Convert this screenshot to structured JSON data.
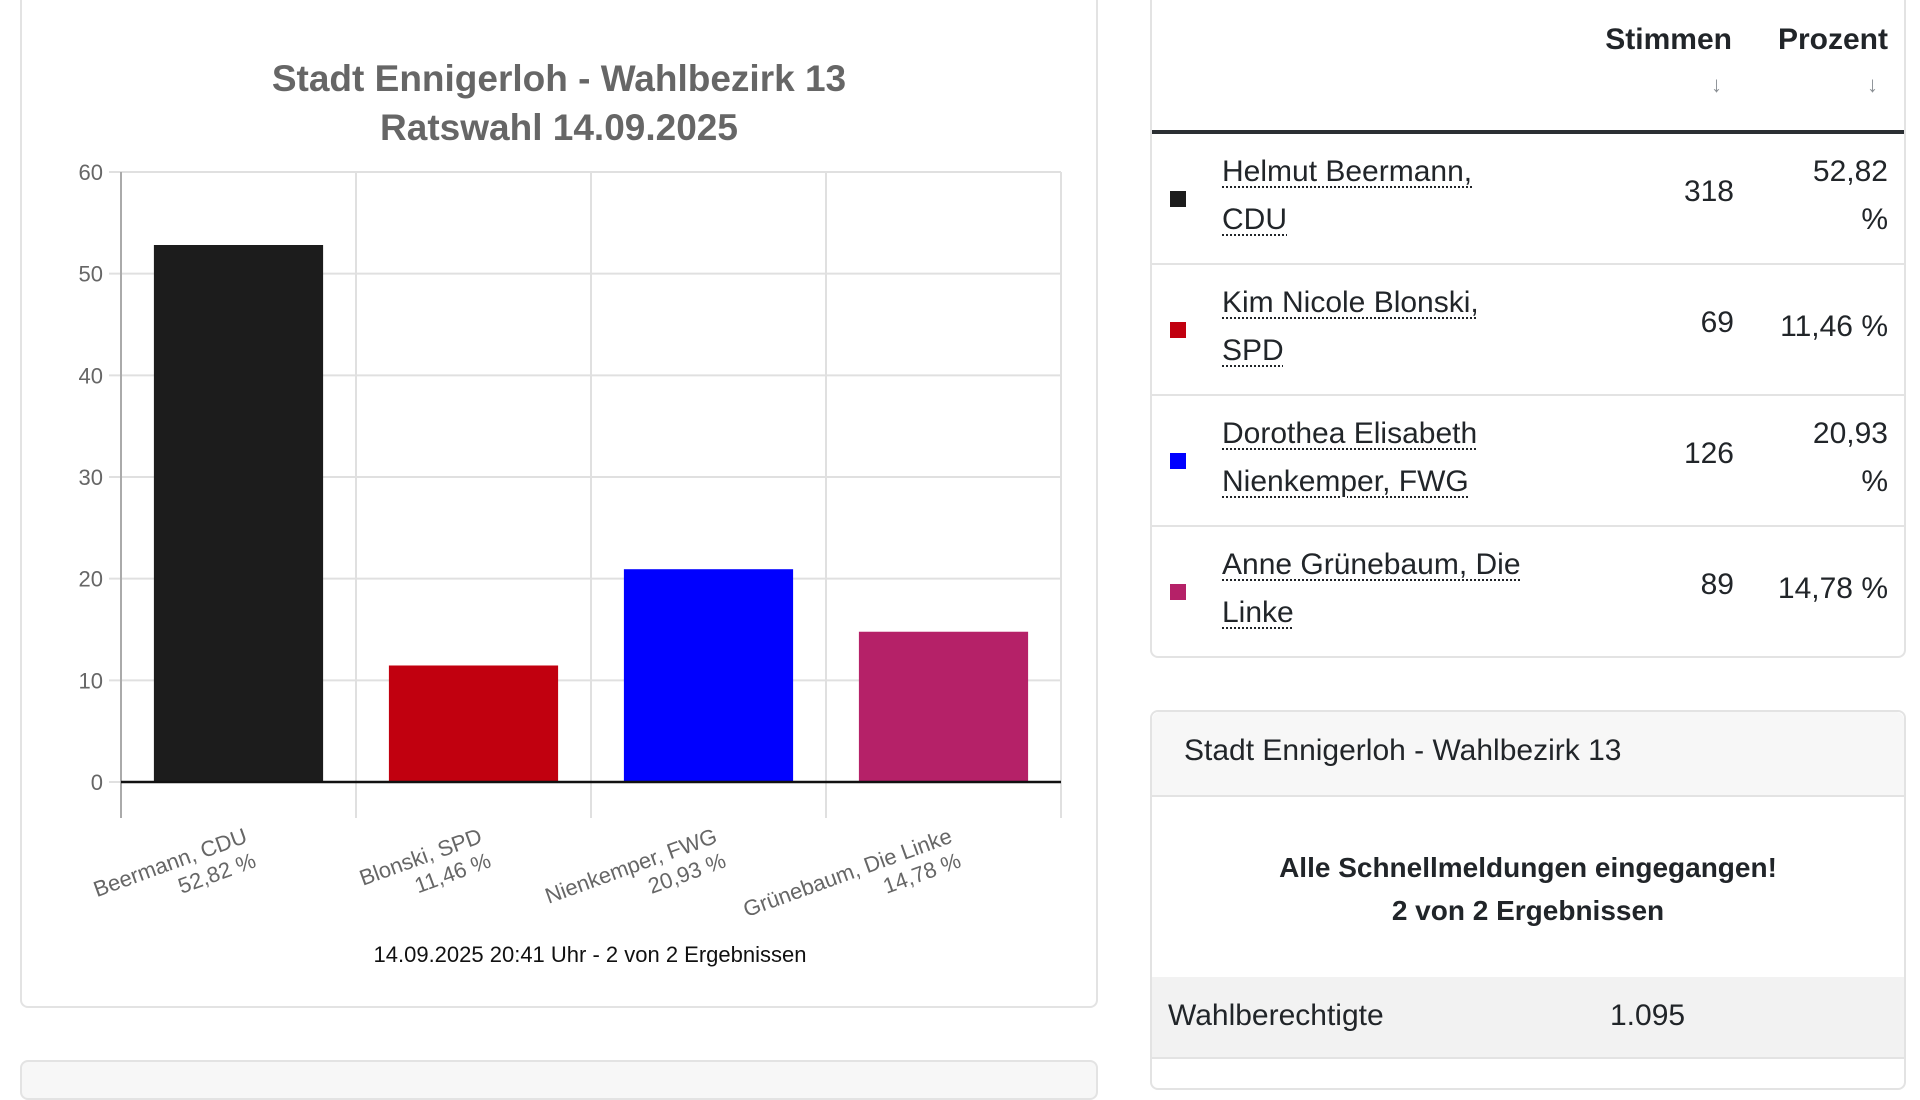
{
  "chart_data": {
    "type": "bar",
    "title": [
      "Stadt Ennigerloh - Wahlbezirk 13",
      "Ratswahl 14.09.2025"
    ],
    "categories": [
      "Beermann, CDU",
      "Blonski, SPD",
      "Nienkemper, FWG",
      "Grünebaum, Die Linke"
    ],
    "value_labels": [
      "52,82 %",
      "11,46 %",
      "20,93 %",
      "14,78 %"
    ],
    "values": [
      52.82,
      11.46,
      20.93,
      14.78
    ],
    "colors": [
      "#1c1c1c",
      "#c1000f",
      "#0000ff",
      "#b52168"
    ],
    "ylim": [
      0,
      60
    ],
    "yticks": [
      0,
      10,
      20,
      30,
      40,
      50,
      60
    ],
    "grid": true,
    "xlabel": "",
    "ylabel": "",
    "footer": "14.09.2025 20:41 Uhr - 2 von 2 Ergebnissen"
  },
  "table": {
    "headers": {
      "votes": "Stimmen",
      "percent": "Prozent",
      "sort_icon": "↓"
    },
    "rows": [
      {
        "name_line1": "Helmut Beermann,",
        "name_line2": "CDU",
        "votes": "318",
        "pct_line1": "52,82",
        "pct_line2": "%",
        "color": "#1c1c1c"
      },
      {
        "name_line1": "Kim Nicole Blonski,",
        "name_line2": "SPD",
        "votes": "69",
        "pct_line1": "11,46 %",
        "pct_line2": "",
        "color": "#c1000f"
      },
      {
        "name_line1": "Dorothea Elisabeth",
        "name_line2": "Nienkemper, FWG",
        "votes": "126",
        "pct_line1": "20,93",
        "pct_line2": "%",
        "color": "#0000ff"
      },
      {
        "name_line1": "Anne Grünebaum, Die",
        "name_line2": "Linke",
        "votes": "89",
        "pct_line1": "14,78 %",
        "pct_line2": "",
        "color": "#b52168"
      }
    ]
  },
  "info": {
    "header": "Stadt Ennigerloh - Wahlbezirk 13",
    "alert_line1": "Alle Schnellmeldungen eingegangen!",
    "alert_line2": "2 von 2 Ergebnissen",
    "stats": [
      {
        "label": "Wahlberechtigte",
        "value": "1.095"
      }
    ]
  }
}
